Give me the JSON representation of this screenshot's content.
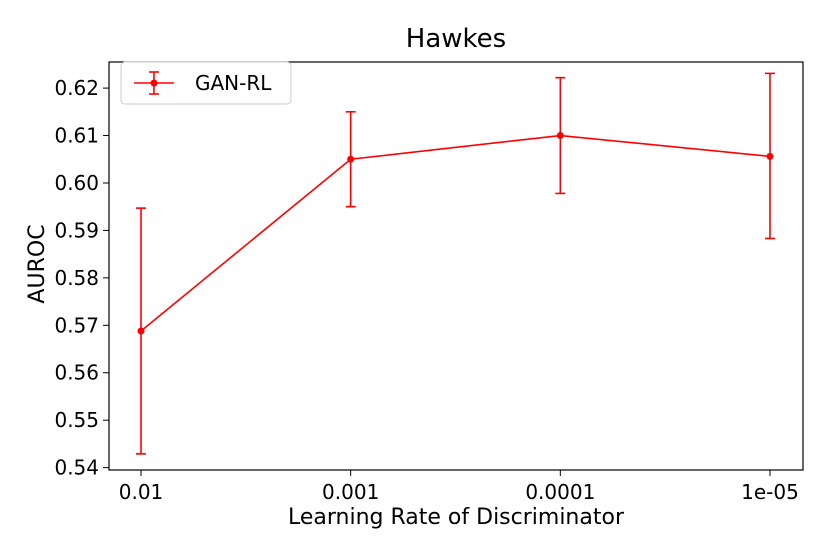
{
  "chart_data": {
    "type": "line",
    "title": "Hawkes",
    "xlabel": "Learning Rate of Discriminator",
    "ylabel": "AUROC",
    "categories": [
      "0.01",
      "0.001",
      "0.0001",
      "1e-05"
    ],
    "ylim": [
      0.5395,
      0.6255
    ],
    "yticks": [
      0.54,
      0.55,
      0.56,
      0.57,
      0.58,
      0.59,
      0.6,
      0.61,
      0.62
    ],
    "ytick_labels": [
      "0.54",
      "0.55",
      "0.56",
      "0.57",
      "0.58",
      "0.59",
      "0.60",
      "0.61",
      "0.62"
    ],
    "grid": false,
    "legend": {
      "position": "top-left"
    },
    "series": [
      {
        "name": "GAN-RL",
        "color": "#ff0000",
        "values": [
          0.5688,
          0.605,
          0.61,
          0.6056
        ],
        "err_low": [
          0.5429,
          0.595,
          0.5978,
          0.5883
        ],
        "err_high": [
          0.5947,
          0.615,
          0.6222,
          0.6231
        ]
      }
    ]
  }
}
